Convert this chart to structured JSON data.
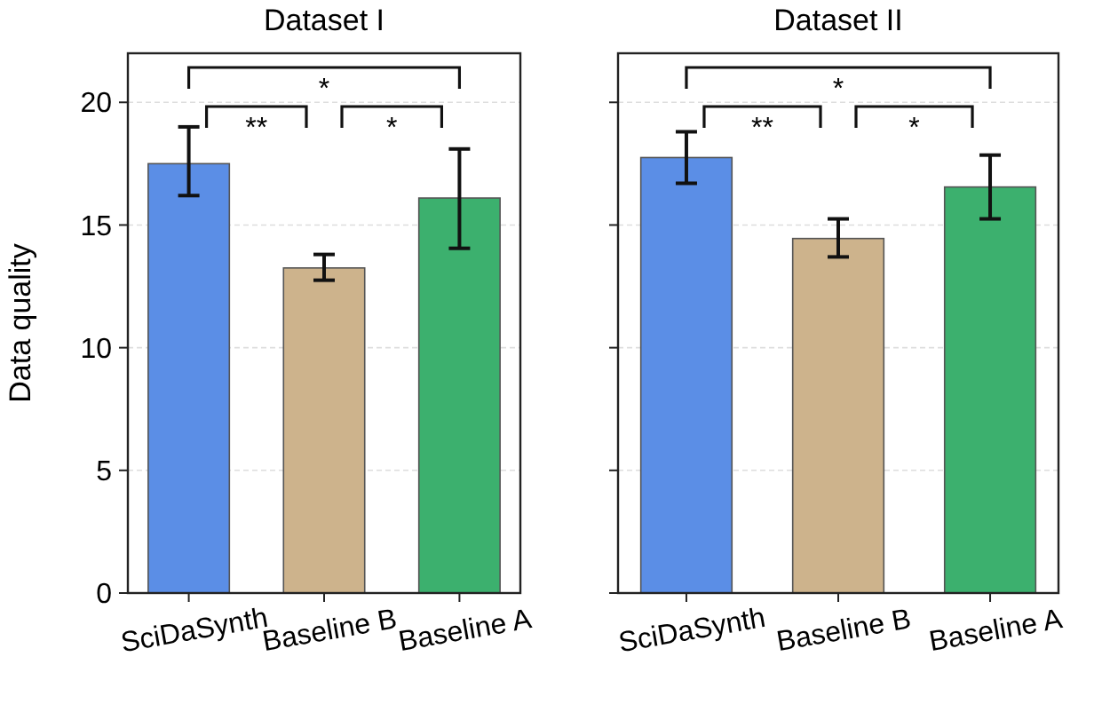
{
  "chart_data": [
    {
      "type": "bar",
      "title": "Dataset I",
      "ylabel": "Data quality",
      "categories": [
        "SciDaSynth",
        "Baseline B",
        "Baseline A"
      ],
      "values": [
        17.5,
        13.25,
        16.1
      ],
      "colors": [
        "#5b8ee6",
        "#cdb38c",
        "#3cb06e"
      ],
      "errors": [
        [
          16.2,
          19.0
        ],
        [
          12.75,
          13.8
        ],
        [
          14.05,
          18.1
        ]
      ],
      "ylim": [
        0,
        22
      ],
      "yticks": [
        0,
        5,
        10,
        15,
        20
      ],
      "grid": "y",
      "annotations": [
        "**",
        "*",
        "*"
      ]
    },
    {
      "type": "bar",
      "title": "Dataset II",
      "categories": [
        "SciDaSynth",
        "Baseline B",
        "Baseline A"
      ],
      "values": [
        17.75,
        14.45,
        16.55
      ],
      "colors": [
        "#5b8ee6",
        "#cdb38c",
        "#3cb06e"
      ],
      "errors": [
        [
          16.7,
          18.8
        ],
        [
          13.7,
          15.25
        ],
        [
          15.25,
          17.85
        ]
      ],
      "ylim": [
        0,
        22
      ],
      "yticks": [
        0,
        5,
        10,
        15,
        20
      ],
      "grid": "y",
      "tick_labels": "x",
      "annotations": [
        "**",
        "*",
        "*"
      ]
    }
  ]
}
